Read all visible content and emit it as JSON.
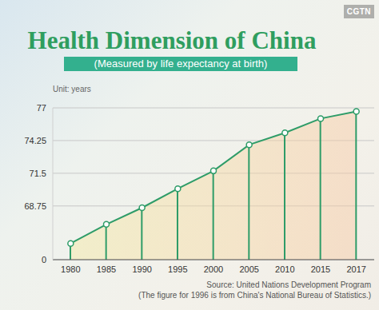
{
  "chart_data": {
    "type": "area",
    "title": "Health Dimension of China",
    "subtitle": "(Measured by life expectancy at birth)",
    "y_label": "Unit: years",
    "source": "Source: United Nations Development Program",
    "note": "(The figure for 1996 is from China's National Bureau of Statistics.)",
    "logo": "CGTN",
    "categories": [
      "1980",
      "1985",
      "1990",
      "1995",
      "2000",
      "2005",
      "2010",
      "2015",
      "2017"
    ],
    "values": [
      65.6,
      67.2,
      68.6,
      70.2,
      71.7,
      73.9,
      74.9,
      76.1,
      76.7
    ],
    "color": "#2e9c68",
    "ylim": [
      0,
      77
    ],
    "yticks": [
      0,
      68.75,
      71.5,
      74.25,
      77
    ],
    "grid": true,
    "marker": "circle"
  }
}
